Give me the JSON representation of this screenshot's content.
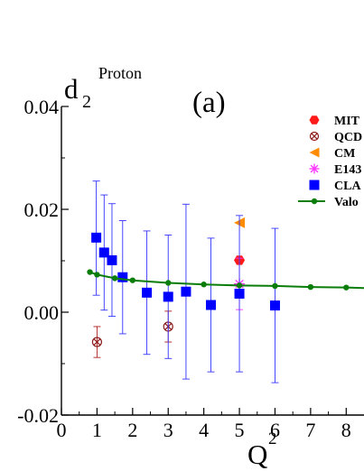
{
  "chart_data": {
    "type": "scatter",
    "panel_label": "(a)",
    "ylabel_main": "d",
    "ylabel_sub": "2",
    "ylabel_sup": "Proton",
    "xlabel_main": "Q",
    "xlabel_sup": "2",
    "xlim": [
      0,
      8.5
    ],
    "ylim": [
      -0.02,
      0.04
    ],
    "x_ticks": [
      {
        "v": 0,
        "label": "0"
      },
      {
        "v": 1,
        "label": "1"
      },
      {
        "v": 2,
        "label": "2"
      },
      {
        "v": 3,
        "label": "3"
      },
      {
        "v": 4,
        "label": "4"
      },
      {
        "v": 5,
        "label": "5"
      },
      {
        "v": 6,
        "label": "6"
      },
      {
        "v": 7,
        "label": "7"
      },
      {
        "v": 8,
        "label": "8"
      }
    ],
    "y_ticks": [
      {
        "v": -0.02,
        "label": "-0.02"
      },
      {
        "v": 0.0,
        "label": "0.00"
      },
      {
        "v": 0.02,
        "label": "0.02"
      },
      {
        "v": 0.04,
        "label": "0.04"
      }
    ],
    "legend_position": "top-right",
    "series": [
      {
        "name": "MIT",
        "marker": "hexagon",
        "color": "#ff1a1a",
        "errcolor": "#ff1a1a",
        "points": [
          {
            "x": 5.0,
            "y": 0.0101,
            "lo": 0.0101,
            "hi": 0.0101
          }
        ]
      },
      {
        "name": "QCD",
        "marker": "circle-x",
        "color": "#8b1a1a",
        "errcolor": "#b01c1c",
        "points": [
          {
            "x": 1.0,
            "y": -0.0058,
            "lo": -0.0088,
            "hi": -0.0028
          },
          {
            "x": 3.0,
            "y": -0.0028,
            "lo": -0.0058,
            "hi": 0.0002
          }
        ]
      },
      {
        "name": "CM",
        "marker": "triangle-left",
        "color": "#ff8c00",
        "errcolor": "#ff8c00",
        "points": [
          {
            "x": 5.0,
            "y": 0.0174,
            "lo": 0.0174,
            "hi": 0.0174
          }
        ]
      },
      {
        "name": "E143",
        "marker": "star",
        "color": "#ff33ff",
        "errcolor": "#ff33ff",
        "points": [
          {
            "x": 5.0,
            "y": 0.0055,
            "lo": 0.0005,
            "hi": 0.0105
          }
        ]
      },
      {
        "name": "CLA",
        "marker": "square",
        "color": "#0000ff",
        "errcolor": "#3333ff",
        "points": [
          {
            "x": 0.98,
            "y": 0.0145,
            "lo": 0.0033,
            "hi": 0.0255
          },
          {
            "x": 1.2,
            "y": 0.0116,
            "lo": 0.0004,
            "hi": 0.0228
          },
          {
            "x": 1.42,
            "y": 0.0101,
            "lo": -0.0008,
            "hi": 0.0211
          },
          {
            "x": 1.72,
            "y": 0.0068,
            "lo": -0.0042,
            "hi": 0.0178
          },
          {
            "x": 2.4,
            "y": 0.0038,
            "lo": -0.0082,
            "hi": 0.0158
          },
          {
            "x": 3.0,
            "y": 0.003,
            "lo": -0.009,
            "hi": 0.015
          },
          {
            "x": 3.5,
            "y": 0.004,
            "lo": -0.013,
            "hi": 0.021
          },
          {
            "x": 4.2,
            "y": 0.0014,
            "lo": -0.0116,
            "hi": 0.0144
          },
          {
            "x": 5.0,
            "y": 0.0036,
            "lo": -0.0116,
            "hi": 0.0188
          },
          {
            "x": 6.0,
            "y": 0.0013,
            "lo": -0.0137,
            "hi": 0.0163
          }
        ]
      },
      {
        "name": "Valo",
        "marker": "line-dot",
        "color": "#0a7d0a",
        "errcolor": "#0a7d0a",
        "points": [
          {
            "x": 0.8,
            "y": 0.0078
          },
          {
            "x": 1.0,
            "y": 0.0073
          },
          {
            "x": 1.5,
            "y": 0.0066
          },
          {
            "x": 2.0,
            "y": 0.0062
          },
          {
            "x": 3.0,
            "y": 0.0057
          },
          {
            "x": 4.0,
            "y": 0.0054
          },
          {
            "x": 5.0,
            "y": 0.0052
          },
          {
            "x": 6.0,
            "y": 0.0051
          },
          {
            "x": 7.0,
            "y": 0.0049
          },
          {
            "x": 8.0,
            "y": 0.0048
          },
          {
            "x": 8.5,
            "y": 0.0047
          }
        ]
      }
    ]
  }
}
